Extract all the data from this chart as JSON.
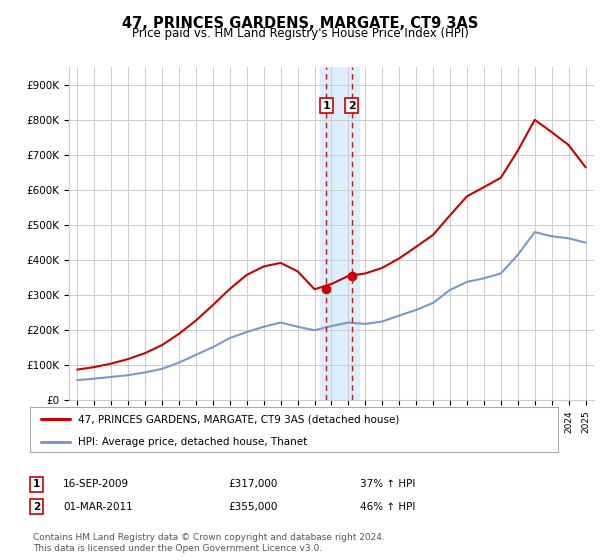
{
  "title": "47, PRINCES GARDENS, MARGATE, CT9 3AS",
  "subtitle": "Price paid vs. HM Land Registry's House Price Index (HPI)",
  "legend_line1": "47, PRINCES GARDENS, MARGATE, CT9 3AS (detached house)",
  "legend_line2": "HPI: Average price, detached house, Thanet",
  "footnote": "Contains HM Land Registry data © Crown copyright and database right 2024.\nThis data is licensed under the Open Government Licence v3.0.",
  "transaction1_date": "16-SEP-2009",
  "transaction1_price": "£317,000",
  "transaction1_hpi": "37% ↑ HPI",
  "transaction2_date": "01-MAR-2011",
  "transaction2_price": "£355,000",
  "transaction2_hpi": "46% ↑ HPI",
  "red_color": "#cc0000",
  "blue_color": "#7799cc",
  "highlight_color": "#ddeeff",
  "grid_color": "#cccccc",
  "background_color": "#ffffff",
  "ylim": [
    0,
    950000
  ],
  "yticks": [
    0,
    100000,
    200000,
    300000,
    400000,
    500000,
    600000,
    700000,
    800000,
    900000
  ],
  "ytick_labels": [
    "£0",
    "£100K",
    "£200K",
    "£300K",
    "£400K",
    "£500K",
    "£600K",
    "£700K",
    "£800K",
    "£900K"
  ],
  "hpi_years": [
    1995,
    1996,
    1997,
    1998,
    1999,
    2000,
    2001,
    2002,
    2003,
    2004,
    2005,
    2006,
    2007,
    2008,
    2009,
    2010,
    2011,
    2012,
    2013,
    2014,
    2015,
    2016,
    2017,
    2018,
    2019,
    2020,
    2021,
    2022,
    2023,
    2024,
    2025
  ],
  "hpi_values": [
    58000,
    62000,
    67000,
    72000,
    80000,
    90000,
    108000,
    130000,
    152000,
    178000,
    195000,
    210000,
    222000,
    210000,
    200000,
    212000,
    222000,
    218000,
    225000,
    242000,
    258000,
    278000,
    315000,
    338000,
    348000,
    362000,
    415000,
    480000,
    468000,
    462000,
    450000
  ],
  "red_years": [
    1995,
    1996,
    1997,
    1998,
    1999,
    2000,
    2001,
    2002,
    2003,
    2004,
    2005,
    2006,
    2007,
    2008,
    2009,
    2010,
    2011,
    2012,
    2013,
    2014,
    2015,
    2016,
    2017,
    2018,
    2019,
    2020,
    2021,
    2022,
    2023,
    2024,
    2025
  ],
  "red_values": [
    88000,
    95000,
    105000,
    118000,
    135000,
    158000,
    190000,
    228000,
    272000,
    318000,
    358000,
    382000,
    392000,
    368000,
    317000,
    332000,
    355000,
    362000,
    378000,
    405000,
    438000,
    472000,
    528000,
    582000,
    608000,
    635000,
    712000,
    800000,
    765000,
    728000,
    665000
  ],
  "trans1_x": 2009.7,
  "trans2_x": 2011.2,
  "trans1_y": 317000,
  "trans2_y": 355000,
  "highlight_xmin": 2009.3,
  "highlight_xmax": 2011.65,
  "xlim_min": 1994.5,
  "xlim_max": 2025.5
}
